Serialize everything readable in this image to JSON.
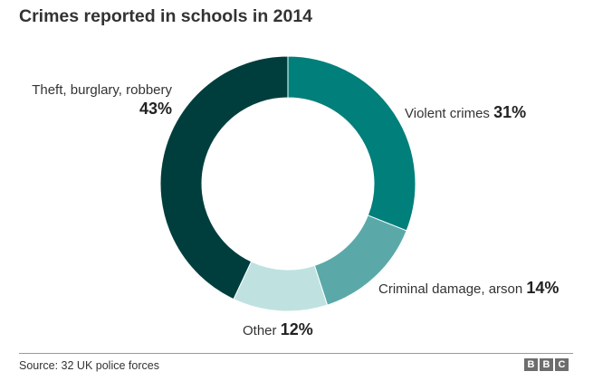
{
  "chart_data": {
    "type": "pie",
    "title": "Crimes reported in schools in 2014",
    "categories": [
      "Violent crimes",
      "Criminal damage, arson",
      "Other",
      "Theft, burglary, robbery"
    ],
    "values": [
      31,
      14,
      12,
      43
    ],
    "value_labels": [
      "31%",
      "14%",
      "12%",
      "43%"
    ],
    "colors": [
      "#007f7b",
      "#5aa9a8",
      "#bfe2e1",
      "#003e3e"
    ],
    "source": "Source: 32 UK police forces"
  },
  "logo": {
    "letters": [
      "B",
      "B",
      "C"
    ],
    "color": "#6d6d6d"
  }
}
